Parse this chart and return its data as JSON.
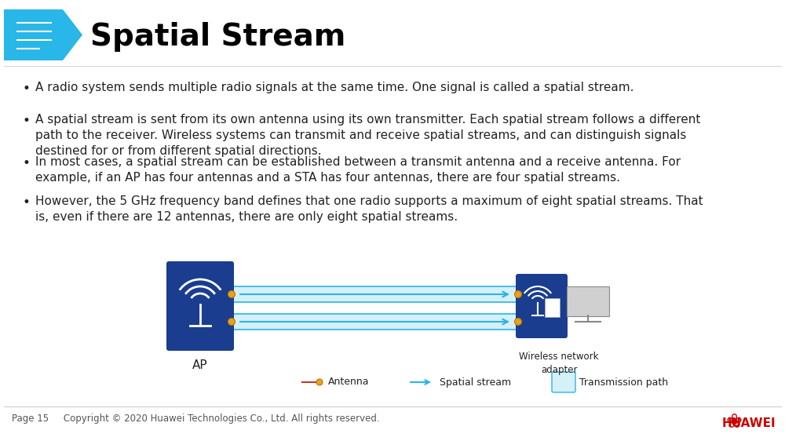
{
  "title": "Spatial Stream",
  "bg_color": "#ffffff",
  "header_bg": "#29b6e8",
  "title_color": "#000000",
  "title_fontsize": 28,
  "bullet_points": [
    "A radio system sends multiple radio signals at the same time. One signal is called a spatial stream.",
    "A spatial stream is sent from its own antenna using its own transmitter. Each spatial stream follows a different\npath to the receiver. Wireless systems can transmit and receive spatial streams, and can distinguish signals\ndestined for or from different spatial directions.",
    "In most cases, a spatial stream can be established between a transmit antenna and a receive antenna. For\nexample, if an AP has four antennas and a STA has four antennas, there are four spatial streams.",
    "However, the 5 GHz frequency band defines that one radio supports a maximum of eight spatial streams. That\nis, even if there are 12 antennas, there are only eight spatial streams."
  ],
  "bullet_fontsize": 11,
  "bullet_color": "#222222",
  "footer_text": "Page 15     Copyright © 2020 Huawei Technologies Co., Ltd. All rights reserved.",
  "footer_color": "#555555",
  "ap_box_color": "#1a3d8f",
  "wna_box_color": "#1a3d8f",
  "stream_tube_fill": "#d6f0f8",
  "stream_tube_border": "#29b6e8",
  "stream_arrow_color": "#29b6e8",
  "antenna_line_color": "#c0392b",
  "antenna_dot_color": "#e8a020",
  "legend_antenna_label": "Antenna",
  "legend_stream_label": "Spatial stream",
  "legend_path_label": "Transmission path",
  "ap_label": "AP",
  "wna_label": "Wireless network\nadapter"
}
